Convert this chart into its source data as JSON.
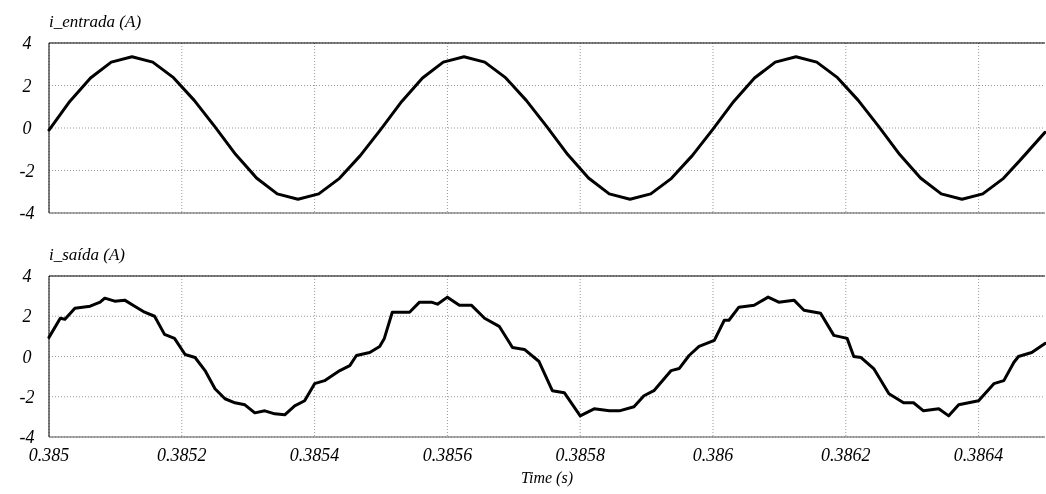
{
  "chart_data": [
    {
      "type": "line",
      "title": "i_entrada (A)",
      "xlim": [
        0.385,
        0.3865
      ],
      "xticks": [
        0.385,
        0.3852,
        0.3854,
        0.3856,
        0.3858,
        0.386,
        0.3862,
        0.3864
      ],
      "ylim": [
        -4,
        4
      ],
      "yticks": [
        -4,
        -2,
        0,
        2,
        4
      ],
      "grid": true,
      "tick_labels": "y",
      "series": [
        {
          "color": "#000000",
          "x": [
            0.385,
            0.38503125,
            0.3850625,
            0.38509375,
            0.385125,
            0.38515625,
            0.3851875,
            0.38521875,
            0.38525,
            0.38528125,
            0.3853125,
            0.38534375,
            0.385375,
            0.38540625,
            0.3854375,
            0.38546875,
            0.3855,
            0.38553125,
            0.3855625,
            0.38559375,
            0.385625,
            0.38565625,
            0.3856875,
            0.38571875,
            0.38575,
            0.38578125,
            0.3858125,
            0.38584375,
            0.385875,
            0.38590625,
            0.3859375,
            0.38596875,
            0.386,
            0.38603125,
            0.3860625,
            0.38609375,
            0.386125,
            0.38615625,
            0.3861875,
            0.38621875,
            0.38625,
            0.38628125,
            0.3863125,
            0.38634375,
            0.386375,
            0.38640625,
            0.3864375,
            0.38646875,
            0.3865
          ],
          "values": [
            -0.1,
            1.25,
            2.35,
            3.1,
            3.35,
            3.1,
            2.37,
            1.3,
            0.05,
            -1.25,
            -2.35,
            -3.1,
            -3.35,
            -3.1,
            -2.37,
            -1.3,
            -0.05,
            1.25,
            2.35,
            3.1,
            3.35,
            3.1,
            2.37,
            1.3,
            0.05,
            -1.25,
            -2.35,
            -3.1,
            -3.35,
            -3.1,
            -2.37,
            -1.3,
            -0.05,
            1.25,
            2.35,
            3.1,
            3.35,
            3.1,
            2.37,
            1.3,
            0.05,
            -1.25,
            -2.35,
            -3.1,
            -3.35,
            -3.1,
            -2.37,
            -1.3,
            -0.2
          ]
        }
      ]
    },
    {
      "type": "line",
      "title": "i_saída (A)",
      "xlabel": "Time (s)",
      "xlim": [
        0.385,
        0.3865
      ],
      "xticks": [
        0.385,
        0.3852,
        0.3854,
        0.3856,
        0.3858,
        0.386,
        0.3862,
        0.3864
      ],
      "ylim": [
        -4,
        4
      ],
      "yticks": [
        -4,
        -2,
        0,
        2,
        4
      ],
      "grid": true,
      "series": [
        {
          "color": "#000000",
          "x": [
            0.385,
            0.385017,
            0.385024,
            0.385039,
            0.385062,
            0.385077,
            0.385084,
            0.385099,
            0.385114,
            0.385129,
            0.385144,
            0.385159,
            0.385174,
            0.385189,
            0.385205,
            0.38522,
            0.385235,
            0.38525,
            0.385265,
            0.38528,
            0.385295,
            0.38531,
            0.385325,
            0.38534,
            0.385355,
            0.38537,
            0.385385,
            0.3854,
            0.385415,
            0.385438,
            0.385453,
            0.385463,
            0.385483,
            0.385498,
            0.385505,
            0.385517,
            0.385543,
            0.385558,
            0.385576,
            0.385585,
            0.3856,
            0.385618,
            0.385636,
            0.385656,
            0.385678,
            0.385698,
            0.385716,
            0.385738,
            0.385758,
            0.385776,
            0.3858,
            0.385821,
            0.385844,
            0.385859,
            0.385881,
            0.385896,
            0.385911,
            0.385937,
            0.385949,
            0.385964,
            0.385979,
            0.386002,
            0.386017,
            0.386024,
            0.386039,
            0.386062,
            0.386083,
            0.386099,
            0.386122,
            0.386137,
            0.386162,
            0.386182,
            0.386202,
            0.386212,
            0.386223,
            0.386242,
            0.386265,
            0.386287,
            0.386302,
            0.386317,
            0.38634,
            0.386355,
            0.38637,
            0.3864,
            0.386423,
            0.386438,
            0.386453,
            0.38646,
            0.38648,
            0.3865
          ],
          "values": [
            0.95,
            1.9,
            1.85,
            2.4,
            2.5,
            2.7,
            2.9,
            2.75,
            2.8,
            2.5,
            2.2,
            2.0,
            1.1,
            0.9,
            0.1,
            -0.05,
            -0.7,
            -1.6,
            -2.1,
            -2.3,
            -2.4,
            -2.8,
            -2.7,
            -2.85,
            -2.9,
            -2.45,
            -2.2,
            -1.35,
            -1.2,
            -0.7,
            -0.45,
            0.05,
            0.2,
            0.5,
            0.9,
            2.2,
            2.2,
            2.7,
            2.7,
            2.6,
            2.95,
            2.55,
            2.55,
            1.9,
            1.5,
            0.45,
            0.35,
            -0.25,
            -1.7,
            -1.8,
            -2.95,
            -2.6,
            -2.7,
            -2.7,
            -2.5,
            -1.95,
            -1.7,
            -0.7,
            -0.6,
            0.05,
            0.5,
            0.8,
            1.8,
            1.8,
            2.45,
            2.55,
            2.95,
            2.7,
            2.8,
            2.3,
            2.15,
            1.05,
            0.9,
            0.0,
            -0.05,
            -0.6,
            -1.85,
            -2.3,
            -2.3,
            -2.7,
            -2.6,
            -2.95,
            -2.4,
            -2.2,
            -1.35,
            -1.2,
            -0.3,
            0.0,
            0.2,
            0.65
          ]
        }
      ]
    }
  ]
}
